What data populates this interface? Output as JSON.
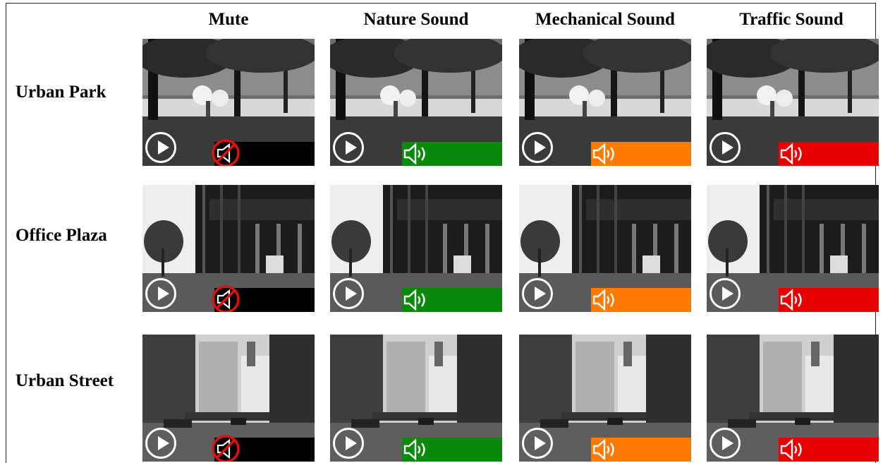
{
  "columns": [
    "Mute",
    "Nature Sound",
    "Mechanical Sound",
    "Traffic Sound"
  ],
  "rows": [
    "Urban Park",
    "Office Plaza",
    "Urban Street"
  ],
  "sound_bar_colors": {
    "mute": "#000000",
    "nature": "#0a8a0a",
    "mechanical": "#ff7a00",
    "traffic": "#e60000"
  },
  "icons": {
    "play": "play-button-icon",
    "sound": "speaker-icon",
    "muted": "muted-speaker-icon"
  }
}
